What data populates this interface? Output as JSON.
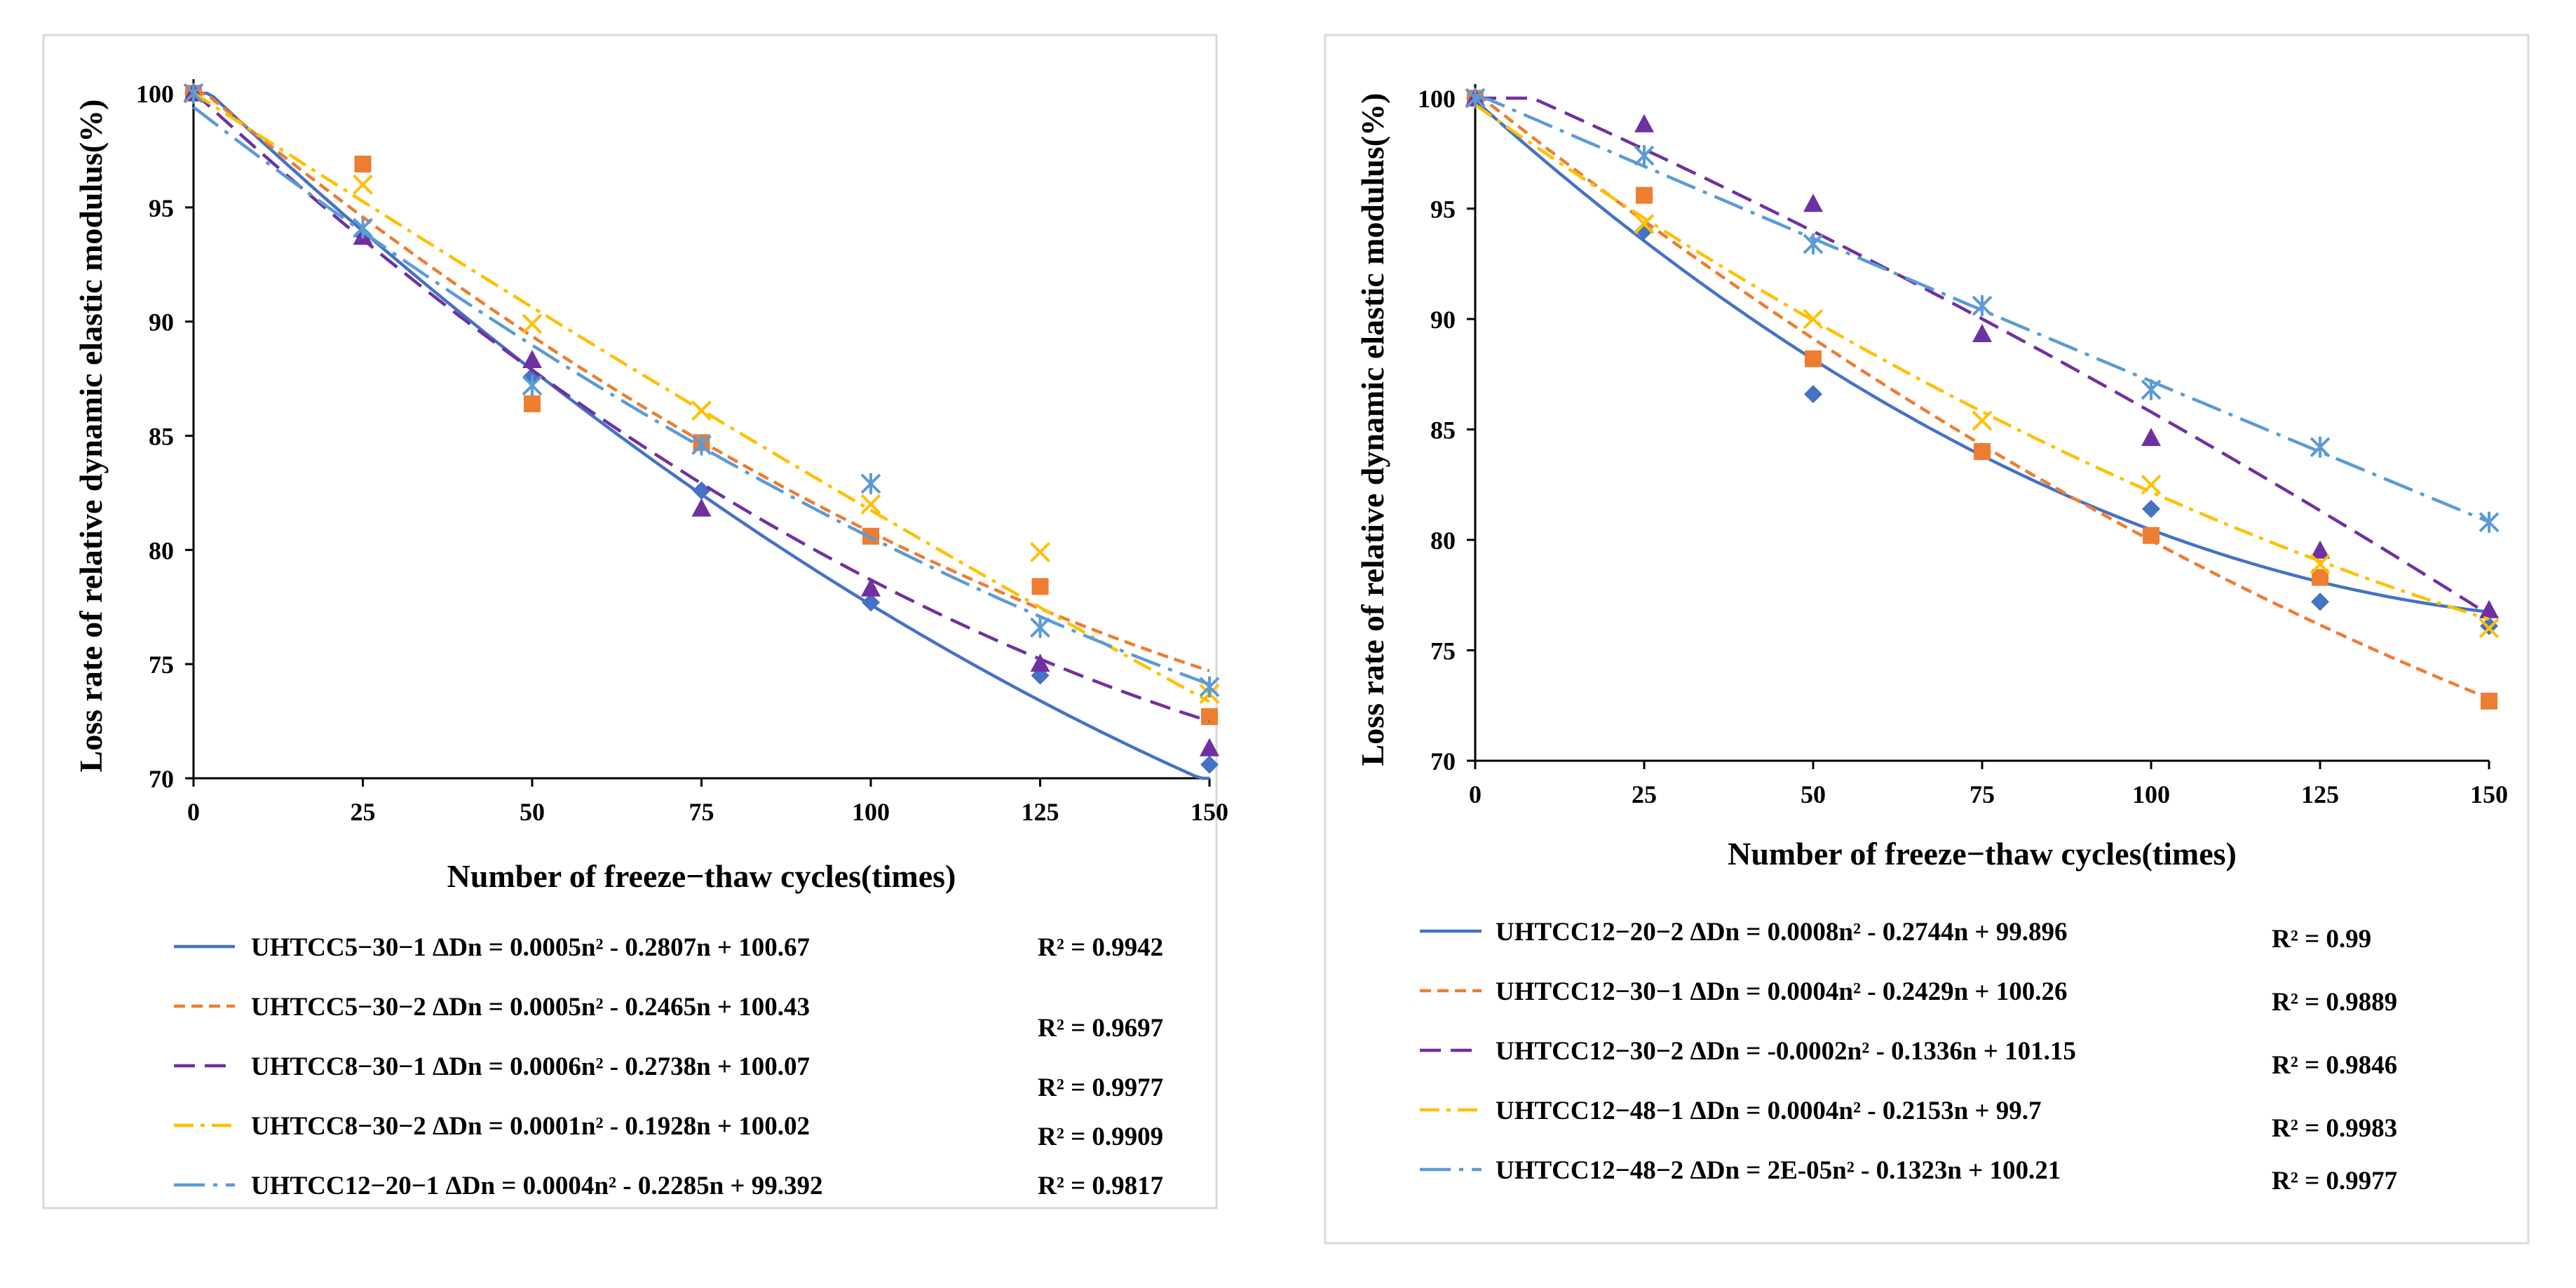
{
  "chart_data": [
    {
      "type": "scatter",
      "xlabel": "Number of freeze−thaw cycles(times)",
      "ylabel": "Loss rate of relative dynamic elastic modulus(%)",
      "xlim": [
        0,
        150
      ],
      "ylim": [
        70,
        100
      ],
      "xticks": [
        "0",
        "25",
        "50",
        "75",
        "100",
        "125",
        "150"
      ],
      "yticks": [
        "70",
        "75",
        "80",
        "85",
        "90",
        "95",
        "100"
      ],
      "x": [
        0,
        25,
        50,
        75,
        100,
        125,
        150
      ],
      "series": [
        {
          "name": "UHTCC5−30−1",
          "color": "#4472C4",
          "marker": "diamond",
          "dash": "solid",
          "values": [
            100,
            93.8,
            87.6,
            82.6,
            77.7,
            74.5,
            70.6
          ],
          "fit": [
            0.0005,
            -0.2807,
            100.67
          ],
          "equation": "UHTCC5−30−1 ΔDn = 0.0005n² - 0.2807n + 100.67",
          "r2": "R² = 0.9942"
        },
        {
          "name": "UHTCC5−30−2",
          "color": "#ED7D31",
          "marker": "square",
          "dash": "short",
          "values": [
            100,
            96.9,
            86.4,
            84.7,
            80.6,
            78.4,
            72.7
          ],
          "fit": [
            0.0005,
            -0.2465,
            100.43
          ],
          "equation": "UHTCC5−30−2 ΔDn = 0.0005n² - 0.2465n + 100.43",
          "r2": "R² = 0.9697"
        },
        {
          "name": "UHTCC8−30−1",
          "color": "#7030A0",
          "marker": "triangle",
          "dash": "dash",
          "values": [
            100,
            93.7,
            88.3,
            81.8,
            78.3,
            75.0,
            71.3
          ],
          "fit": [
            0.0006,
            -0.2738,
            100.07
          ],
          "equation": "UHTCC8−30−1 ΔDn = 0.0006n² - 0.2738n + 100.07",
          "r2": "R² = 0.9977"
        },
        {
          "name": "UHTCC8−30−2",
          "color": "#FFC000",
          "marker": "x",
          "dash": "dashdot",
          "values": [
            100,
            96.0,
            89.9,
            86.1,
            82.0,
            79.9,
            73.7
          ],
          "fit": [
            0.0001,
            -0.1928,
            100.02
          ],
          "equation": "UHTCC8−30−2 ΔDn = 0.0001n² - 0.1928n + 100.02",
          "r2": "R² = 0.9909"
        },
        {
          "name": "UHTCC12−20−1",
          "color": "#5B9BD5",
          "marker": "star",
          "dash": "longdashdot",
          "values": [
            100,
            94.1,
            87.2,
            84.6,
            82.9,
            76.6,
            74.0
          ],
          "fit": [
            0.0004,
            -0.2285,
            99.392
          ],
          "equation": "UHTCC12−20−1 ΔDn = 0.0004n² - 0.2285n + 99.392",
          "r2": "R² = 0.9817"
        }
      ]
    },
    {
      "type": "scatter",
      "xlabel": "Number of freeze−thaw cycles(times)",
      "ylabel": "Loss rate of relative dynamic elastic modulus(%)",
      "xlim": [
        0,
        150
      ],
      "ylim": [
        70,
        100
      ],
      "xticks": [
        "0",
        "25",
        "50",
        "75",
        "100",
        "125",
        "150"
      ],
      "yticks": [
        "70",
        "75",
        "80",
        "85",
        "90",
        "95",
        "100"
      ],
      "x": [
        0,
        25,
        50,
        75,
        100,
        125,
        150
      ],
      "series": [
        {
          "name": "UHTCC12−20−2",
          "color": "#4472C4",
          "marker": "diamond",
          "dash": "solid",
          "values": [
            100,
            94.0,
            86.6,
            84.0,
            81.4,
            77.2,
            76.1
          ],
          "fit": [
            0.0008,
            -0.2744,
            99.896
          ],
          "equation": "UHTCC12−20−2 ΔDn = 0.0008n² - 0.2744n + 99.896",
          "r2": "R² = 0.99"
        },
        {
          "name": "UHTCC12−30−1",
          "color": "#ED7D31",
          "marker": "square",
          "dash": "short",
          "values": [
            100,
            95.6,
            88.2,
            84.0,
            80.2,
            78.3,
            72.7
          ],
          "fit": [
            0.0004,
            -0.2429,
            100.26
          ],
          "equation": "UHTCC12−30−1 ΔDn = 0.0004n² - 0.2429n + 100.26",
          "r2": "R² = 0.9889"
        },
        {
          "name": "UHTCC12−30−2",
          "color": "#7030A0",
          "marker": "triangle",
          "dash": "dash",
          "values": [
            100,
            98.8,
            95.2,
            89.3,
            84.6,
            79.5,
            76.8
          ],
          "fit": [
            -0.0002,
            -0.1336,
            101.15
          ],
          "equation": "UHTCC12−30−2 ΔDn = -0.0002n² - 0.1336n + 101.15",
          "r2": "R² = 0.9846"
        },
        {
          "name": "UHTCC12−48−1",
          "color": "#FFC000",
          "marker": "x",
          "dash": "dashdot",
          "values": [
            100,
            94.3,
            90.0,
            85.4,
            82.5,
            78.9,
            76.0
          ],
          "fit": [
            0.0004,
            -0.2153,
            99.7
          ],
          "equation": "UHTCC12−48−1 ΔDn = 0.0004n² - 0.2153n + 99.7",
          "r2": "R² = 0.9983"
        },
        {
          "name": "UHTCC12−48−2",
          "color": "#5B9BD5",
          "marker": "star",
          "dash": "longdashdot",
          "values": [
            100,
            97.4,
            93.4,
            90.6,
            86.8,
            84.2,
            80.8
          ],
          "fit": [
            2e-05,
            -0.1323,
            100.21
          ],
          "equation": "UHTCC12−48−2 ΔDn = 2E-05n² - 0.1323n + 100.21",
          "r2": "R² = 0.9977"
        }
      ]
    }
  ]
}
